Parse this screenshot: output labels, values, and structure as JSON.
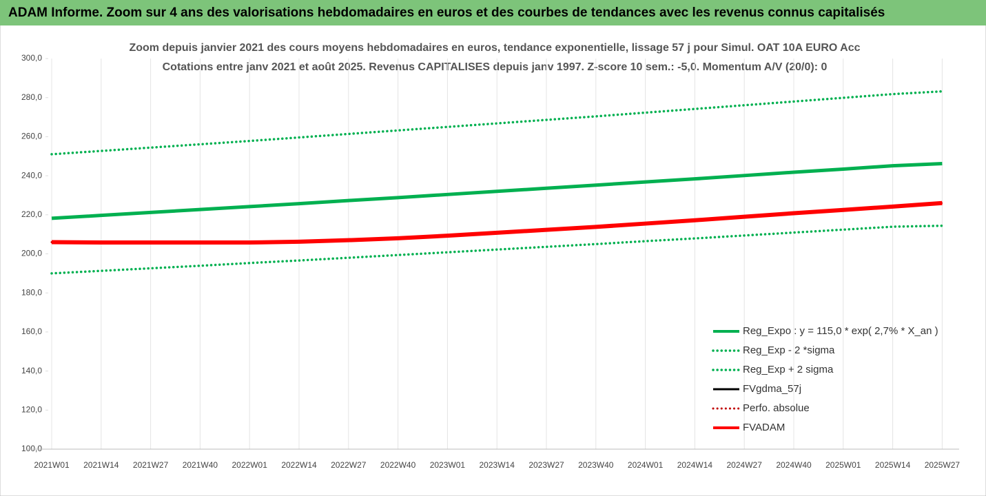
{
  "chart_data": {
    "type": "line",
    "title": "ADAM Informe. Zoom sur 4 ans des valorisations hebdomadaires en euros et des courbes de tendances avec les revenus connus capitalisés",
    "subtitle": [
      "Zoom depuis janvier 2021 des cours moyens hebdomadaires en euros, tendance exponentielle, lissage 57 j pour Simul. OAT 10A EURO Acc",
      "Cotations entre janv 2021 et août 2025. Revenus CAPITALISES depuis janv 1997. Z-score 10 sem.: -5,0. Momentum A/V (20/0): 0"
    ],
    "categories": [
      "2021W01",
      "2021W14",
      "2021W27",
      "2021W40",
      "2022W01",
      "2022W14",
      "2022W27",
      "2022W40",
      "2023W01",
      "2023W14",
      "2023W27",
      "2023W40",
      "2024W01",
      "2024W14",
      "2024W27",
      "2024W40",
      "2025W01",
      "2025W14",
      "2025W27"
    ],
    "ylim": [
      100,
      300
    ],
    "yticks": [
      {
        "value": 100,
        "label": "100,0"
      },
      {
        "value": 120,
        "label": "120,0"
      },
      {
        "value": 140,
        "label": "140,0"
      },
      {
        "value": 160,
        "label": "160,0"
      },
      {
        "value": 180,
        "label": "180,0"
      },
      {
        "value": 200,
        "label": "200,0"
      },
      {
        "value": 220,
        "label": "220,0"
      },
      {
        "value": 240,
        "label": "240,0"
      },
      {
        "value": 260,
        "label": "260,0"
      },
      {
        "value": 280,
        "label": "280,0"
      },
      {
        "value": 300,
        "label": "300,0"
      }
    ],
    "grid": "vertical",
    "legend": "bottom-right",
    "series": [
      {
        "name": "Reg_Expo : y = 115,0 * exp( 2,7% *  X_an )",
        "color": "#00b050",
        "style": "solid",
        "width": 5,
        "values": [
          218.2,
          219.7,
          221.2,
          222.7,
          224.2,
          225.7,
          227.3,
          228.8,
          230.4,
          232.0,
          233.6,
          235.2,
          236.8,
          238.4,
          240.1,
          241.8,
          243.4,
          245.1,
          246.2
        ]
      },
      {
        "name": "Reg_Exp - 2 *sigma",
        "color": "#00b050",
        "style": "dotted",
        "width": 3.5,
        "values": [
          190.0,
          191.3,
          192.6,
          193.9,
          195.3,
          196.6,
          198.0,
          199.4,
          200.8,
          202.2,
          203.6,
          205.0,
          206.5,
          207.9,
          209.4,
          210.9,
          212.4,
          213.9,
          214.4
        ]
      },
      {
        "name": "Reg_Exp + 2 sigma",
        "color": "#00b050",
        "style": "dotted",
        "width": 3.5,
        "values": [
          251.0,
          252.7,
          254.4,
          256.1,
          257.8,
          259.6,
          261.4,
          263.2,
          265.0,
          266.8,
          268.6,
          270.4,
          272.3,
          274.2,
          276.1,
          278.0,
          279.9,
          281.8,
          283.2
        ]
      },
      {
        "name": "FVgdma_57j",
        "color": "#000000",
        "style": "solid",
        "width": 3,
        "values": [
          206.0,
          205.8,
          205.8,
          205.8,
          205.8,
          206.2,
          207.0,
          208.0,
          209.3,
          210.8,
          212.3,
          213.8,
          215.5,
          217.2,
          219.0,
          220.8,
          222.5,
          224.2,
          226.0
        ]
      },
      {
        "name": "Perfo. absolue",
        "color": "#c00000",
        "style": "dotted",
        "width": 3,
        "values": [
          206.0,
          205.8,
          205.8,
          205.8,
          205.8,
          206.2,
          207.0,
          208.0,
          209.3,
          210.8,
          212.3,
          213.8,
          215.5,
          217.2,
          219.0,
          220.8,
          222.5,
          224.2,
          226.0
        ]
      },
      {
        "name": "FVADAM",
        "color": "#ff0000",
        "style": "solid",
        "width": 6,
        "values": [
          206.0,
          205.8,
          205.8,
          205.8,
          205.8,
          206.2,
          207.0,
          208.0,
          209.3,
          210.8,
          212.3,
          213.8,
          215.5,
          217.2,
          219.0,
          220.8,
          222.5,
          224.2,
          226.0
        ]
      }
    ]
  }
}
